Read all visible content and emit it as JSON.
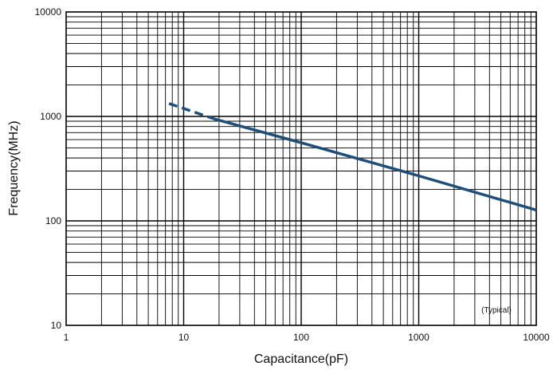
{
  "chart_data": {
    "type": "line",
    "xscale": "log",
    "yscale": "log",
    "xlim": [
      1,
      10000
    ],
    "ylim": [
      10,
      10000
    ],
    "xlabel": "Capacitance(pF)",
    "ylabel": "Frequency(MHz)",
    "x_tick_labels": [
      "1",
      "10",
      "100",
      "1000",
      "10000"
    ],
    "y_tick_labels": [
      "10",
      "100",
      "1000",
      "10000"
    ],
    "grid": true,
    "annotation": "(Typical)",
    "line_color": "#1f4e79",
    "series": [
      {
        "values_dashed": [
          [
            7.5,
            1330
          ],
          [
            18,
            950
          ]
        ],
        "values_solid": [
          [
            18,
            950
          ],
          [
            100,
            560
          ],
          [
            1000,
            270
          ],
          [
            10000,
            127
          ]
        ]
      }
    ]
  }
}
